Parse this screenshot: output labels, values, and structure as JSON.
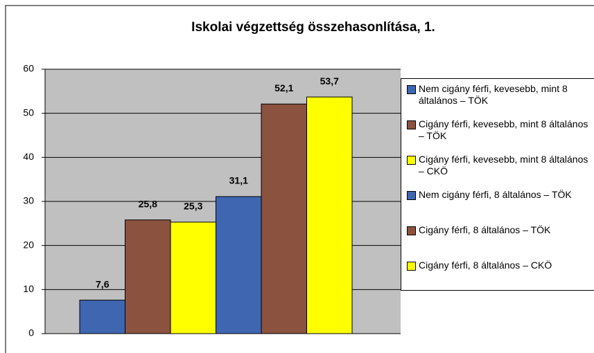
{
  "chart_data": {
    "type": "bar",
    "title": "Iskolai végzettség összehasonlítása, 1.",
    "categories": [
      null
    ],
    "series": [
      {
        "name": "Nem cigány férfi, kevesebb, mint 8 általános – TÖK",
        "color": "#3f66b0",
        "values": [
          7.6
        ],
        "value_labels": [
          "7,6"
        ]
      },
      {
        "name": "Cigány férfi, kevesebb, mint 8 általános – TÖK",
        "color": "#8b5240",
        "values": [
          25.8
        ],
        "value_labels": [
          "25,8"
        ]
      },
      {
        "name": "Cigány férfi, kevesebb, mint 8 általános – CKÖ",
        "color": "#ffff00",
        "values": [
          25.3
        ],
        "value_labels": [
          "25,3"
        ]
      },
      {
        "name": "Nem cigány férfi, 8 általános – TÖK",
        "color": "#3f66b0",
        "values": [
          31.1
        ],
        "value_labels": [
          "31,1"
        ]
      },
      {
        "name": "Cigány férfi, 8 általános – TÖK",
        "color": "#8b5240",
        "values": [
          52.1
        ],
        "value_labels": [
          "52,1"
        ]
      },
      {
        "name": "Cigány férfi, 8 általános – CKÖ",
        "color": "#ffff00",
        "values": [
          53.7
        ],
        "value_labels": [
          "53,7"
        ]
      }
    ],
    "ylim": [
      0,
      60
    ],
    "yticks": [
      0,
      10,
      20,
      30,
      40,
      50,
      60
    ],
    "grid": true,
    "legend": "right"
  }
}
